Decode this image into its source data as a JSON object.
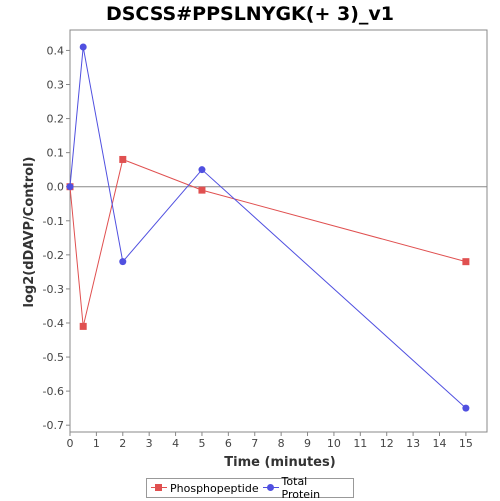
{
  "chart_data": {
    "type": "line",
    "title": "DSCSS#PPSLNYGK(+ 3)_v1",
    "xlabel": "Time (minutes)",
    "ylabel": "log2(dDAVP/Control)",
    "xlim": [
      0,
      15.8
    ],
    "ylim": [
      -0.72,
      0.46
    ],
    "xticks": [
      0,
      1,
      2,
      3,
      4,
      5,
      6,
      7,
      8,
      9,
      10,
      11,
      12,
      13,
      14,
      15
    ],
    "yticks": [
      0.4,
      0.3,
      0.2,
      0.1,
      0.0,
      -0.1,
      -0.2,
      -0.3,
      -0.4,
      -0.5,
      -0.6,
      -0.7
    ],
    "ytick_labels": [
      "0.4",
      "0.3",
      "0.2",
      "0.1",
      "0.0",
      "-0.1",
      "-0.2",
      "-0.3",
      "-0.4",
      "-0.5",
      "-0.6",
      "-0.7"
    ],
    "grid": false,
    "legend_position": "bottom",
    "series": [
      {
        "name": "Phosphopeptide",
        "color": "#e05050",
        "marker": "square",
        "x": [
          0,
          0.5,
          2,
          5,
          15
        ],
        "y": [
          0.0,
          -0.41,
          0.08,
          -0.01,
          -0.22
        ]
      },
      {
        "name": "Total Protein",
        "color": "#5050e0",
        "marker": "circle",
        "x": [
          0,
          0.5,
          2,
          5,
          15
        ],
        "y": [
          0.0,
          0.41,
          -0.22,
          0.05,
          -0.65
        ]
      }
    ]
  }
}
